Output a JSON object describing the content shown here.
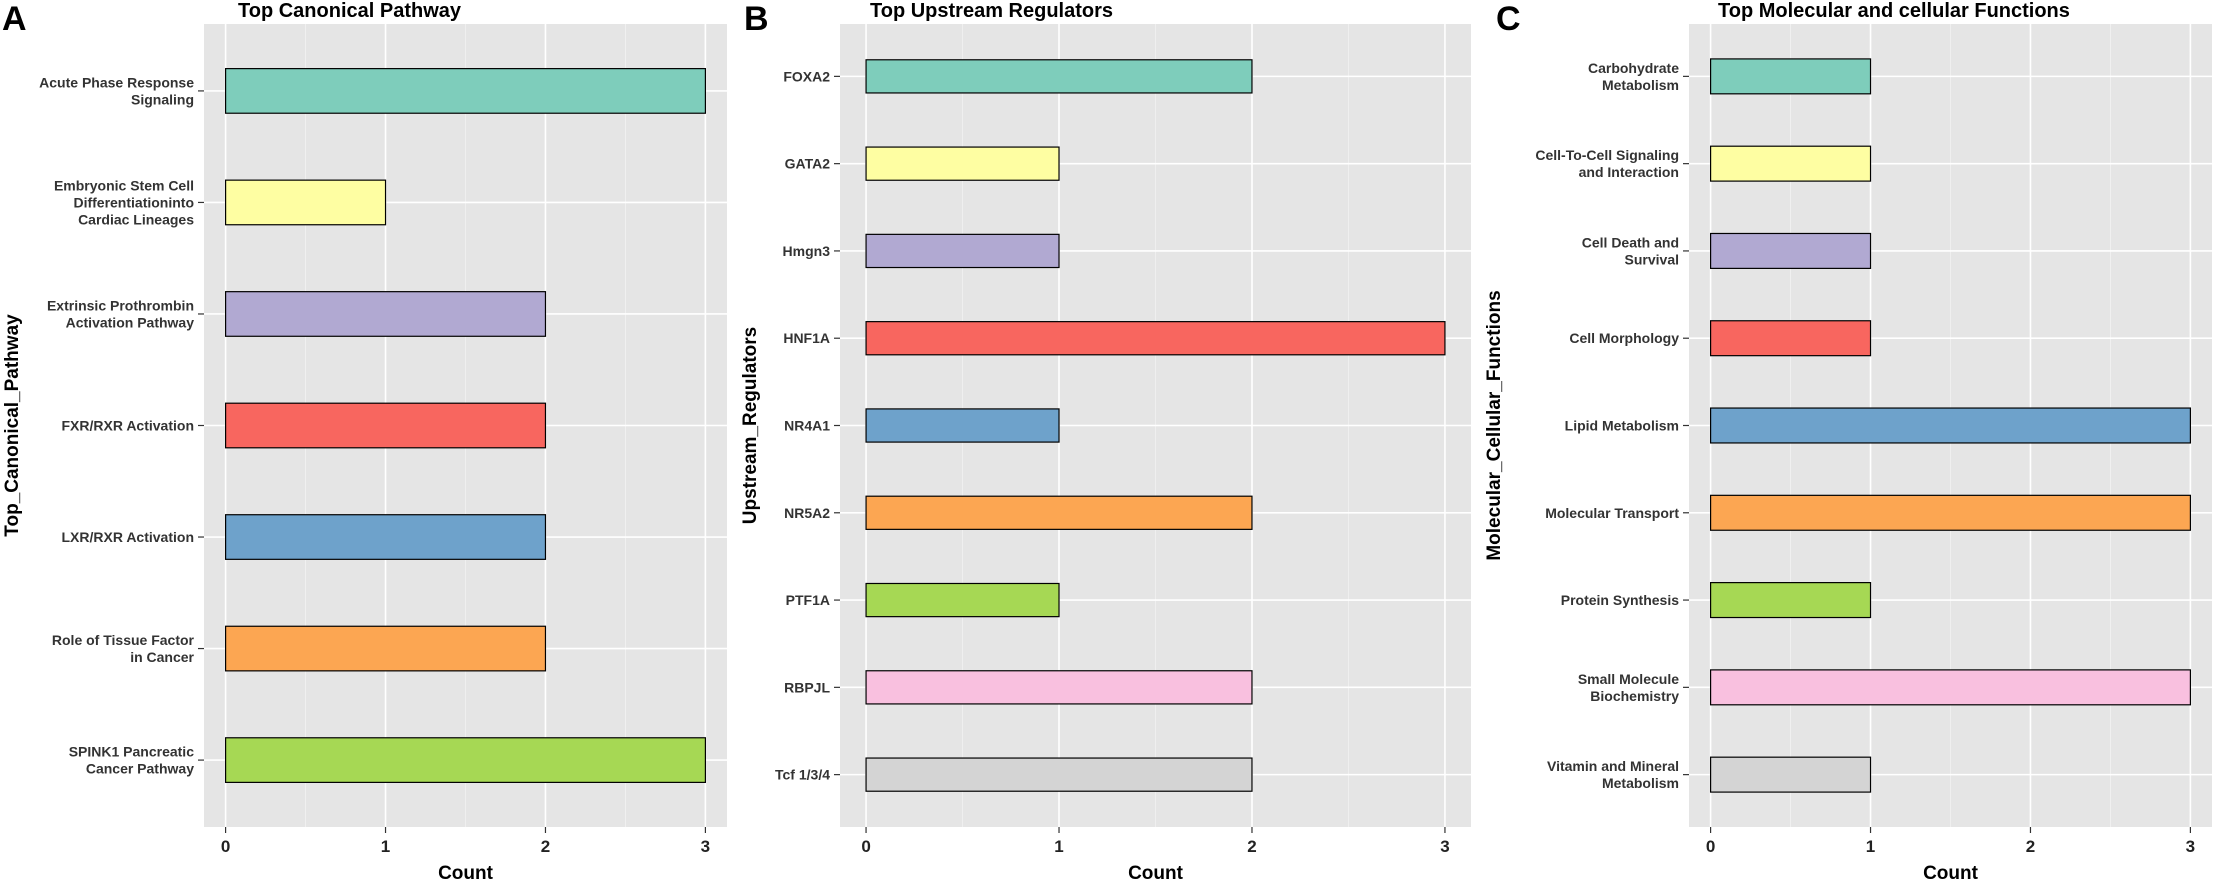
{
  "chart_data": [
    {
      "type": "bar",
      "orientation": "horizontal",
      "panel_label": "A",
      "title": "Top Canonical Pathway",
      "xlabel": "Count",
      "ylabel": "Top_Canonical_Pathway",
      "xlim": [
        0,
        3
      ],
      "xticks": [
        "0",
        "1",
        "2",
        "3"
      ],
      "categories": [
        [
          "SPINK1 Pancreatic",
          "Cancer Pathway"
        ],
        [
          "Role of Tissue Factor",
          "in Cancer"
        ],
        [
          "LXR/RXR Activation"
        ],
        [
          "FXR/RXR Activation"
        ],
        [
          "Extrinsic Prothrombin",
          "Activation Pathway"
        ],
        [
          "Embryonic Stem Cell",
          "Differentiationinto",
          "Cardiac Lineages"
        ],
        [
          "Acute Phase Response",
          "Signaling"
        ]
      ],
      "values": [
        3,
        2,
        2,
        2,
        2,
        1,
        3
      ],
      "colors": [
        "#a6d854",
        "#fca652",
        "#6ea2cb",
        "#f8665f",
        "#b1a9d2",
        "#fefea2",
        "#7ecdbb"
      ]
    },
    {
      "type": "bar",
      "orientation": "horizontal",
      "panel_label": "B",
      "title": "Top Upstream Regulators",
      "xlabel": "Count",
      "ylabel": "Upstream_Regulators",
      "xlim": [
        0,
        3
      ],
      "xticks": [
        "0",
        "1",
        "2",
        "3"
      ],
      "categories": [
        [
          "Tcf 1/3/4"
        ],
        [
          "RBPJL"
        ],
        [
          "PTF1A"
        ],
        [
          "NR5A2"
        ],
        [
          "NR4A1"
        ],
        [
          "HNF1A"
        ],
        [
          "Hmgn3"
        ],
        [
          "GATA2"
        ],
        [
          "FOXA2"
        ]
      ],
      "values": [
        2,
        2,
        1,
        2,
        1,
        3,
        1,
        1,
        2
      ],
      "colors": [
        "#d4d4d4",
        "#f9c0df",
        "#a6d854",
        "#fca652",
        "#6ea2cb",
        "#f8665f",
        "#b1a9d2",
        "#fefea2",
        "#7ecdbb"
      ]
    },
    {
      "type": "bar",
      "orientation": "horizontal",
      "panel_label": "C",
      "title": "Top Molecular and cellular Functions",
      "xlabel": "Count",
      "ylabel": "Molecular_Cellular_Functions",
      "xlim": [
        0,
        3
      ],
      "xticks": [
        "0",
        "1",
        "2",
        "3"
      ],
      "categories": [
        [
          "Vitamin and Mineral",
          "Metabolism"
        ],
        [
          "Small Molecule",
          "Biochemistry"
        ],
        [
          "Protein Synthesis"
        ],
        [
          "Molecular Transport"
        ],
        [
          "Lipid Metabolism"
        ],
        [
          "Cell Morphology"
        ],
        [
          "Cell Death and",
          "Survival"
        ],
        [
          "Cell-To-Cell Signaling",
          "and Interaction"
        ],
        [
          "Carbohydrate",
          "Metabolism"
        ]
      ],
      "values": [
        1,
        3,
        1,
        3,
        3,
        1,
        1,
        1,
        1
      ],
      "colors": [
        "#d4d4d4",
        "#f9c0df",
        "#a6d854",
        "#fca652",
        "#6ea2cb",
        "#f8665f",
        "#b1a9d2",
        "#fefea2",
        "#7ecdbb"
      ]
    }
  ]
}
